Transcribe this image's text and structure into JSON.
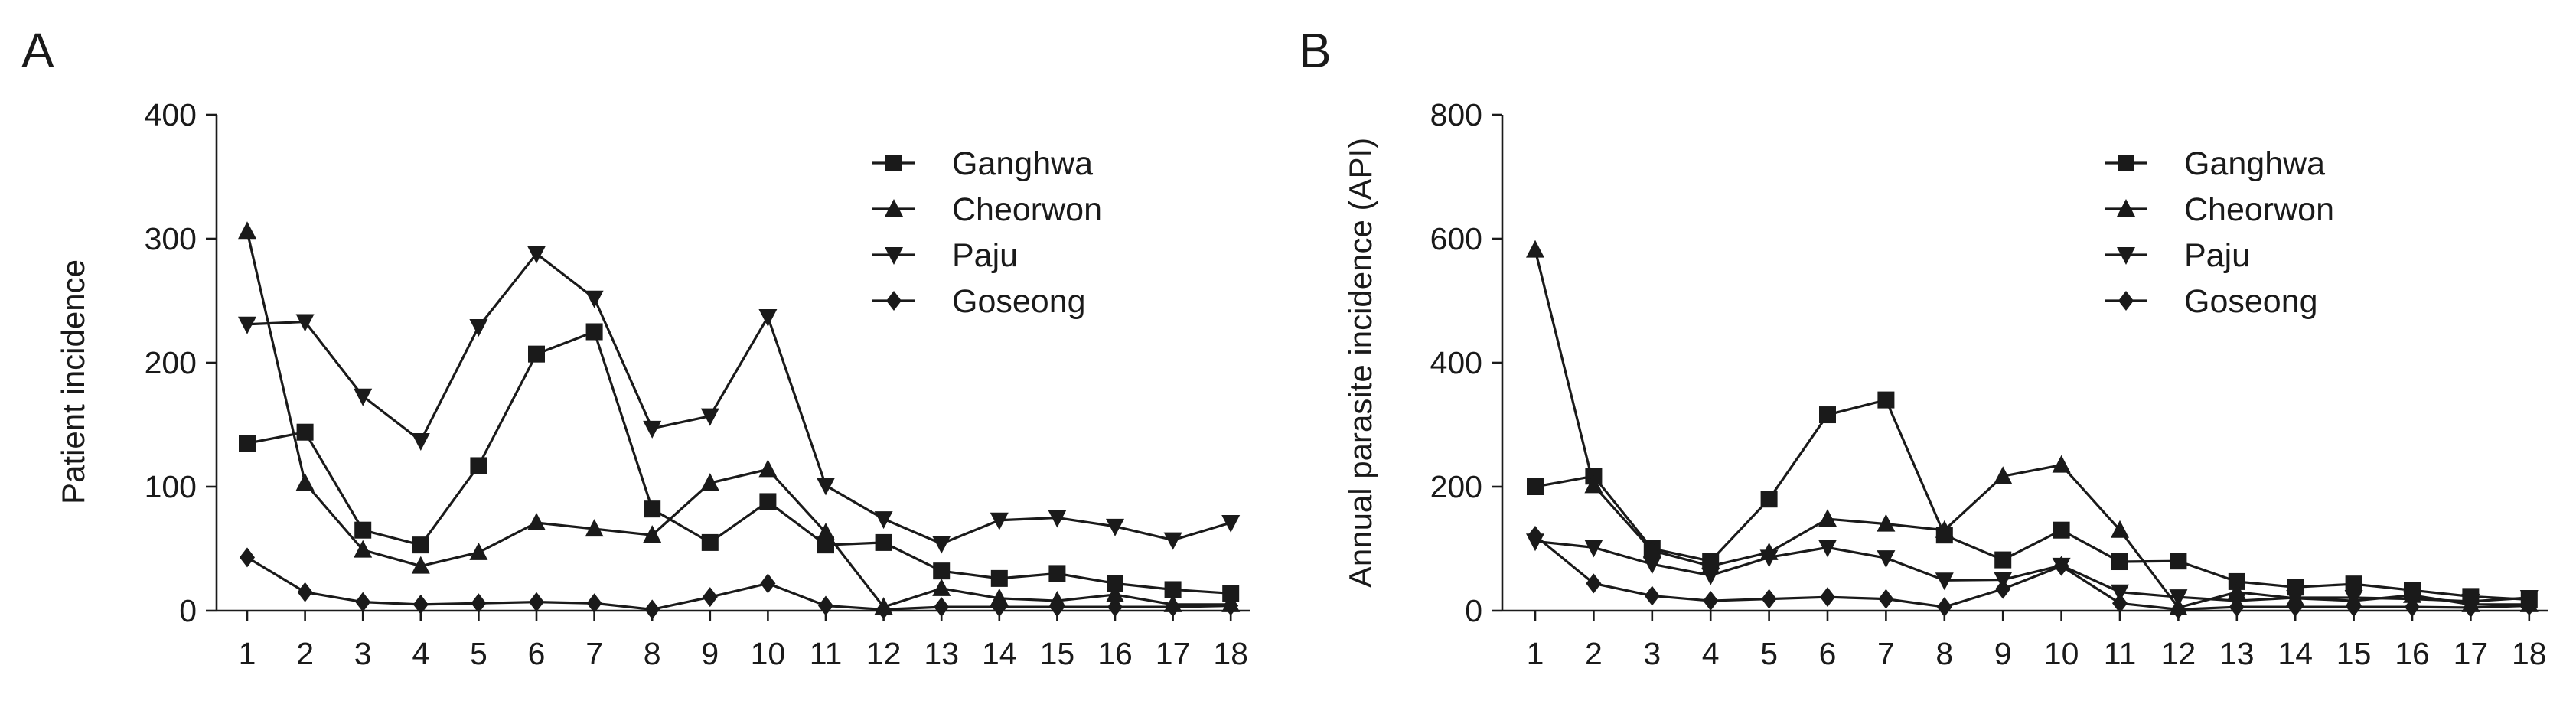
{
  "chart_data": [
    {
      "type": "line",
      "panel_label": "A",
      "title": "",
      "xlabel": "",
      "ylabel": "Patient incidence",
      "ylim": [
        0,
        400
      ],
      "yticks": [
        0,
        100,
        200,
        300,
        400
      ],
      "categories": [
        "1",
        "2",
        "3",
        "4",
        "5",
        "6",
        "7",
        "8",
        "9",
        "10",
        "11",
        "12",
        "13",
        "14",
        "15",
        "16",
        "17",
        "18"
      ],
      "legend_position": "top-right",
      "series": [
        {
          "name": "Ganghwa",
          "marker": "square",
          "values": [
            135,
            144,
            65,
            53,
            117,
            207,
            225,
            82,
            55,
            88,
            53,
            55,
            32,
            26,
            30,
            22,
            17,
            14
          ]
        },
        {
          "name": "Cheorwon",
          "marker": "triangle-up",
          "values": [
            306,
            103,
            49,
            36,
            47,
            71,
            66,
            61,
            103,
            114,
            63,
            3,
            18,
            10,
            8,
            13,
            5,
            5
          ]
        },
        {
          "name": "Paju",
          "marker": "triangle-down",
          "values": [
            231,
            233,
            173,
            137,
            229,
            288,
            252,
            147,
            157,
            237,
            101,
            74,
            54,
            73,
            75,
            68,
            57,
            71
          ]
        },
        {
          "name": "Goseong",
          "marker": "diamond",
          "values": [
            43,
            15,
            7,
            5,
            6,
            7,
            6,
            1,
            11,
            22,
            4,
            1,
            3,
            3,
            3,
            3,
            3,
            4
          ]
        }
      ]
    },
    {
      "type": "line",
      "panel_label": "B",
      "title": "",
      "xlabel": "",
      "ylabel": "Annual parasite incidence (API)",
      "ylim": [
        0,
        800
      ],
      "yticks": [
        0,
        200,
        400,
        600,
        800
      ],
      "categories": [
        "1",
        "2",
        "3",
        "4",
        "5",
        "6",
        "7",
        "8",
        "9",
        "10",
        "11",
        "12",
        "13",
        "14",
        "15",
        "16",
        "17",
        "18"
      ],
      "legend_position": "top-right",
      "series": [
        {
          "name": "Ganghwa",
          "marker": "square",
          "values": [
            200,
            217,
            100,
            80,
            180,
            316,
            340,
            122,
            82,
            130,
            79,
            80,
            47,
            38,
            43,
            33,
            23,
            18
          ]
        },
        {
          "name": "Cheorwon",
          "marker": "triangle-up",
          "values": [
            582,
            202,
            97,
            72,
            94,
            148,
            140,
            130,
            217,
            235,
            130,
            5,
            30,
            20,
            16,
            25,
            10,
            10
          ]
        },
        {
          "name": "Paju",
          "marker": "triangle-down",
          "values": [
            112,
            102,
            75,
            57,
            86,
            102,
            85,
            49,
            50,
            73,
            30,
            22,
            16,
            21,
            21,
            19,
            15,
            21
          ]
        },
        {
          "name": "Goseong",
          "marker": "diamond",
          "values": [
            121,
            44,
            24,
            16,
            19,
            22,
            19,
            6,
            35,
            72,
            12,
            2,
            6,
            6,
            6,
            6,
            5,
            8
          ]
        }
      ]
    }
  ]
}
